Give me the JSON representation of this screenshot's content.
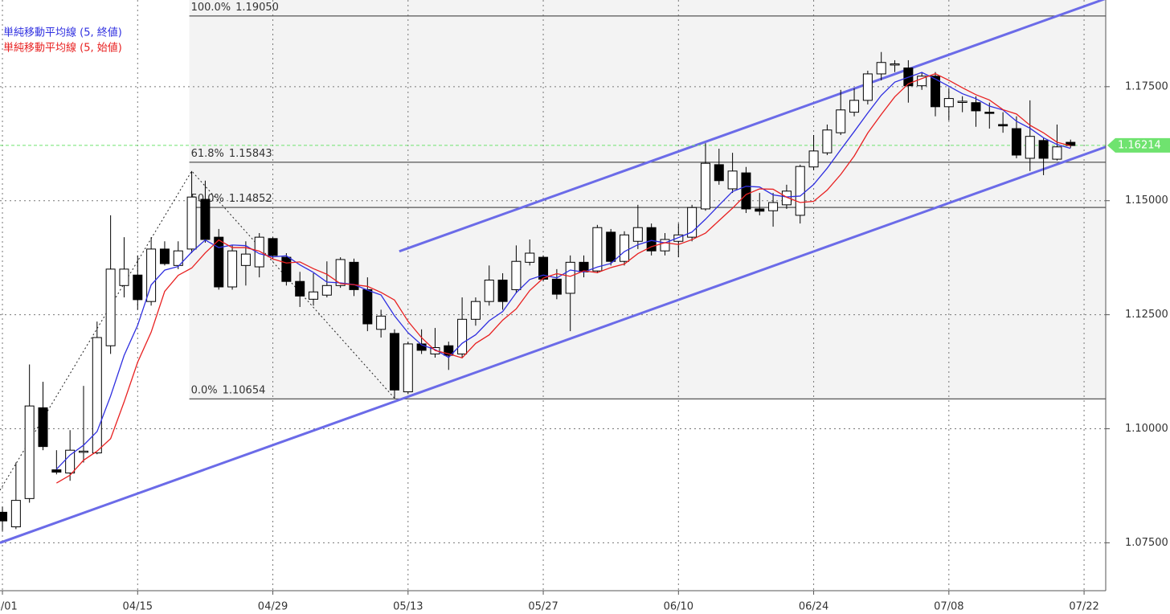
{
  "chart_data": {
    "type": "candlestick",
    "x": [
      0,
      1,
      2,
      3,
      4,
      5,
      6,
      7,
      8,
      9,
      10,
      11,
      12,
      13,
      14,
      15,
      16,
      17,
      18,
      19,
      20,
      21,
      22,
      23,
      24,
      25,
      26,
      27,
      28,
      29,
      30,
      31,
      32,
      33,
      34,
      35,
      36,
      37,
      38,
      39,
      40,
      41,
      42,
      43,
      44,
      45,
      46,
      47,
      48,
      49,
      50,
      51,
      52,
      53,
      54,
      55,
      56,
      57,
      58,
      59,
      60,
      61,
      62,
      63,
      64,
      65,
      66,
      67,
      68,
      69,
      70,
      71,
      72,
      73,
      74,
      75,
      76,
      77,
      78,
      79
    ],
    "open": [
      1.0817,
      1.0785,
      1.0847,
      1.1046,
      1.091,
      1.0903,
      1.0949,
      1.0947,
      1.1182,
      1.1314,
      1.1337,
      1.1279,
      1.1394,
      1.1358,
      1.1394,
      1.1503,
      1.142,
      1.1311,
      1.1358,
      1.1355,
      1.1417,
      1.1376,
      1.1323,
      1.1284,
      1.1293,
      1.1314,
      1.1365,
      1.1305,
      1.1218,
      1.1209,
      1.1081,
      1.1186,
      1.1164,
      1.1182,
      1.1164,
      1.124,
      1.1279,
      1.1326,
      1.1305,
      1.1365,
      1.1376,
      1.1328,
      1.1297,
      1.1365,
      1.1346,
      1.1431,
      1.1367,
      1.1411,
      1.1441,
      1.139,
      1.1411,
      1.142,
      1.1482,
      1.1579,
      1.1526,
      1.1561,
      1.1482,
      1.1478,
      1.1491,
      1.1468,
      1.1574,
      1.1605,
      1.1649,
      1.1694,
      1.172,
      1.1778,
      1.1798,
      1.1791,
      1.1752,
      1.1773,
      1.1706,
      1.1716,
      1.1715,
      1.1694,
      1.1667,
      1.1658,
      1.1593,
      1.1632,
      1.1591,
      1.1628
    ],
    "high": [
      1.0829,
      1.0926,
      1.1141,
      1.1103,
      1.0953,
      1.0997,
      1.1094,
      1.1235,
      1.1468,
      1.142,
      1.138,
      1.142,
      1.1411,
      1.1411,
      1.1565,
      1.1544,
      1.1438,
      1.1402,
      1.1411,
      1.1429,
      1.142,
      1.1385,
      1.1344,
      1.1341,
      1.1367,
      1.1376,
      1.1373,
      1.1332,
      1.1261,
      1.1218,
      1.1191,
      1.1218,
      1.1221,
      1.1191,
      1.1288,
      1.1288,
      1.1358,
      1.1341,
      1.1402,
      1.1415,
      1.138,
      1.135,
      1.138,
      1.138,
      1.1447,
      1.1438,
      1.1433,
      1.1491,
      1.145,
      1.1429,
      1.145,
      1.1491,
      1.1626,
      1.1614,
      1.1605,
      1.1574,
      1.1517,
      1.1517,
      1.1535,
      1.1579,
      1.1644,
      1.1667,
      1.1743,
      1.1746,
      1.1785,
      1.1826,
      1.1808,
      1.1808,
      1.1782,
      1.1782,
      1.1746,
      1.1729,
      1.1729,
      1.1715,
      1.1694,
      1.1685,
      1.172,
      1.1637,
      1.1667,
      1.1634
    ],
    "low": [
      1.0776,
      1.078,
      1.0838,
      1.0953,
      1.09,
      1.0886,
      1.0926,
      1.0944,
      1.1164,
      1.1288,
      1.1261,
      1.127,
      1.1358,
      1.135,
      1.1385,
      1.1408,
      1.1305,
      1.1305,
      1.1314,
      1.1332,
      1.1373,
      1.1314,
      1.1267,
      1.127,
      1.1288,
      1.1309,
      1.1291,
      1.1214,
      1.12,
      1.1067,
      1.1076,
      1.1164,
      1.1156,
      1.1129,
      1.1156,
      1.1226,
      1.127,
      1.1261,
      1.1297,
      1.1358,
      1.1323,
      1.1284,
      1.1214,
      1.1332,
      1.1341,
      1.1358,
      1.1358,
      1.1394,
      1.138,
      1.138,
      1.1376,
      1.1411,
      1.1478,
      1.1535,
      1.1517,
      1.1473,
      1.1468,
      1.1443,
      1.1482,
      1.145,
      1.1567,
      1.16,
      1.1644,
      1.1685,
      1.1711,
      1.1764,
      1.1782,
      1.1715,
      1.1743,
      1.1685,
      1.1676,
      1.1694,
      1.1662,
      1.1658,
      1.1649,
      1.1593,
      1.1565,
      1.1556,
      1.1588,
      1.1616
    ],
    "close": [
      1.0798,
      1.0843,
      1.105,
      1.0961,
      1.0905,
      1.0953,
      1.0951,
      1.12,
      1.135,
      1.135,
      1.1283,
      1.1394,
      1.1362,
      1.139,
      1.1508,
      1.1415,
      1.1311,
      1.139,
      1.1383,
      1.142,
      1.138,
      1.1323,
      1.1291,
      1.13,
      1.1314,
      1.1371,
      1.1305,
      1.123,
      1.1247,
      1.1085,
      1.1186,
      1.1172,
      1.1178,
      1.1161,
      1.124,
      1.1279,
      1.1326,
      1.1279,
      1.1367,
      1.1385,
      1.1328,
      1.1295,
      1.1365,
      1.1344,
      1.1441,
      1.1367,
      1.1425,
      1.1441,
      1.139,
      1.1415,
      1.1425,
      1.1485,
      1.1582,
      1.1544,
      1.1565,
      1.1482,
      1.1477,
      1.1496,
      1.1521,
      1.1575,
      1.1609,
      1.1655,
      1.1699,
      1.172,
      1.1778,
      1.1803,
      1.18,
      1.1752,
      1.1773,
      1.1706,
      1.1724,
      1.1718,
      1.1697,
      1.1692,
      1.1664,
      1.16,
      1.1641,
      1.1593,
      1.1618,
      1.1621
    ],
    "up_color": "#ffffff",
    "down_color": "#000000",
    "moving_averages": [
      {
        "name": "単純移動平均線 (5, 終値)",
        "color": "#2f2fe0",
        "source": "close",
        "period": 5
      },
      {
        "name": "単純移動平均線 (5, 始値)",
        "color": "#e82020",
        "source": "open",
        "period": 5
      }
    ],
    "fib_levels": [
      {
        "ratio": "100.0%",
        "price": {
          "value": 1.1905,
          "label": "1.19050"
        }
      },
      {
        "ratio": "61.8%",
        "price": {
          "value": 1.15843,
          "label": "1.15843"
        }
      },
      {
        "ratio": "50.0%",
        "price": {
          "value": 1.14852,
          "label": "1.14852"
        }
      },
      {
        "ratio": "0.0%",
        "price": {
          "value": 1.10654,
          "label": "1.10654"
        }
      }
    ],
    "trendlines": [
      {
        "x": [
          -0.18,
          81.6
        ],
        "y": [
          1.075,
          1.1618
        ],
        "color": "#6b6be8"
      },
      {
        "x": [
          29.35,
          81.6
        ],
        "y": [
          1.1389,
          1.1943
        ],
        "color": "#6b6be8"
      }
    ],
    "last_price": 1.16214,
    "last_price_color": "#6fe36f",
    "xlim": [
      -0.18,
      81.6
    ],
    "xticks": [
      {
        "value": 0,
        "label": "04/01"
      },
      {
        "value": 10,
        "label": "04/15"
      },
      {
        "value": 20,
        "label": "04/29"
      },
      {
        "value": 30,
        "label": "05/13"
      },
      {
        "value": 40,
        "label": "05/27"
      },
      {
        "value": 50,
        "label": "06/10"
      },
      {
        "value": 60,
        "label": "06/24"
      },
      {
        "value": 70,
        "label": "07/08"
      },
      {
        "value": 80,
        "label": "07/22"
      }
    ],
    "ylim": [
      1.0645,
      1.194
    ],
    "yticks": [
      {
        "value": 1.075,
        "label": "1.07500"
      },
      {
        "value": 1.1,
        "label": "1.10000"
      },
      {
        "value": 1.125,
        "label": "1.12500"
      },
      {
        "value": 1.15,
        "label": "1.15000"
      },
      {
        "value": 1.175,
        "label": "1.17500"
      }
    ],
    "grid": true
  }
}
